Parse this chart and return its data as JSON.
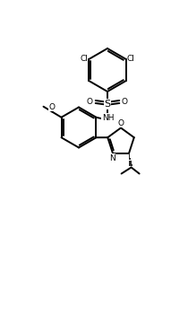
{
  "bg_color": "#ffffff",
  "line_color": "#000000",
  "line_width": 1.4,
  "font_size": 6.5,
  "figsize": [
    2.1,
    3.7
  ],
  "dpi": 100,
  "xlim": [
    0,
    21
  ],
  "ylim": [
    0,
    37
  ]
}
